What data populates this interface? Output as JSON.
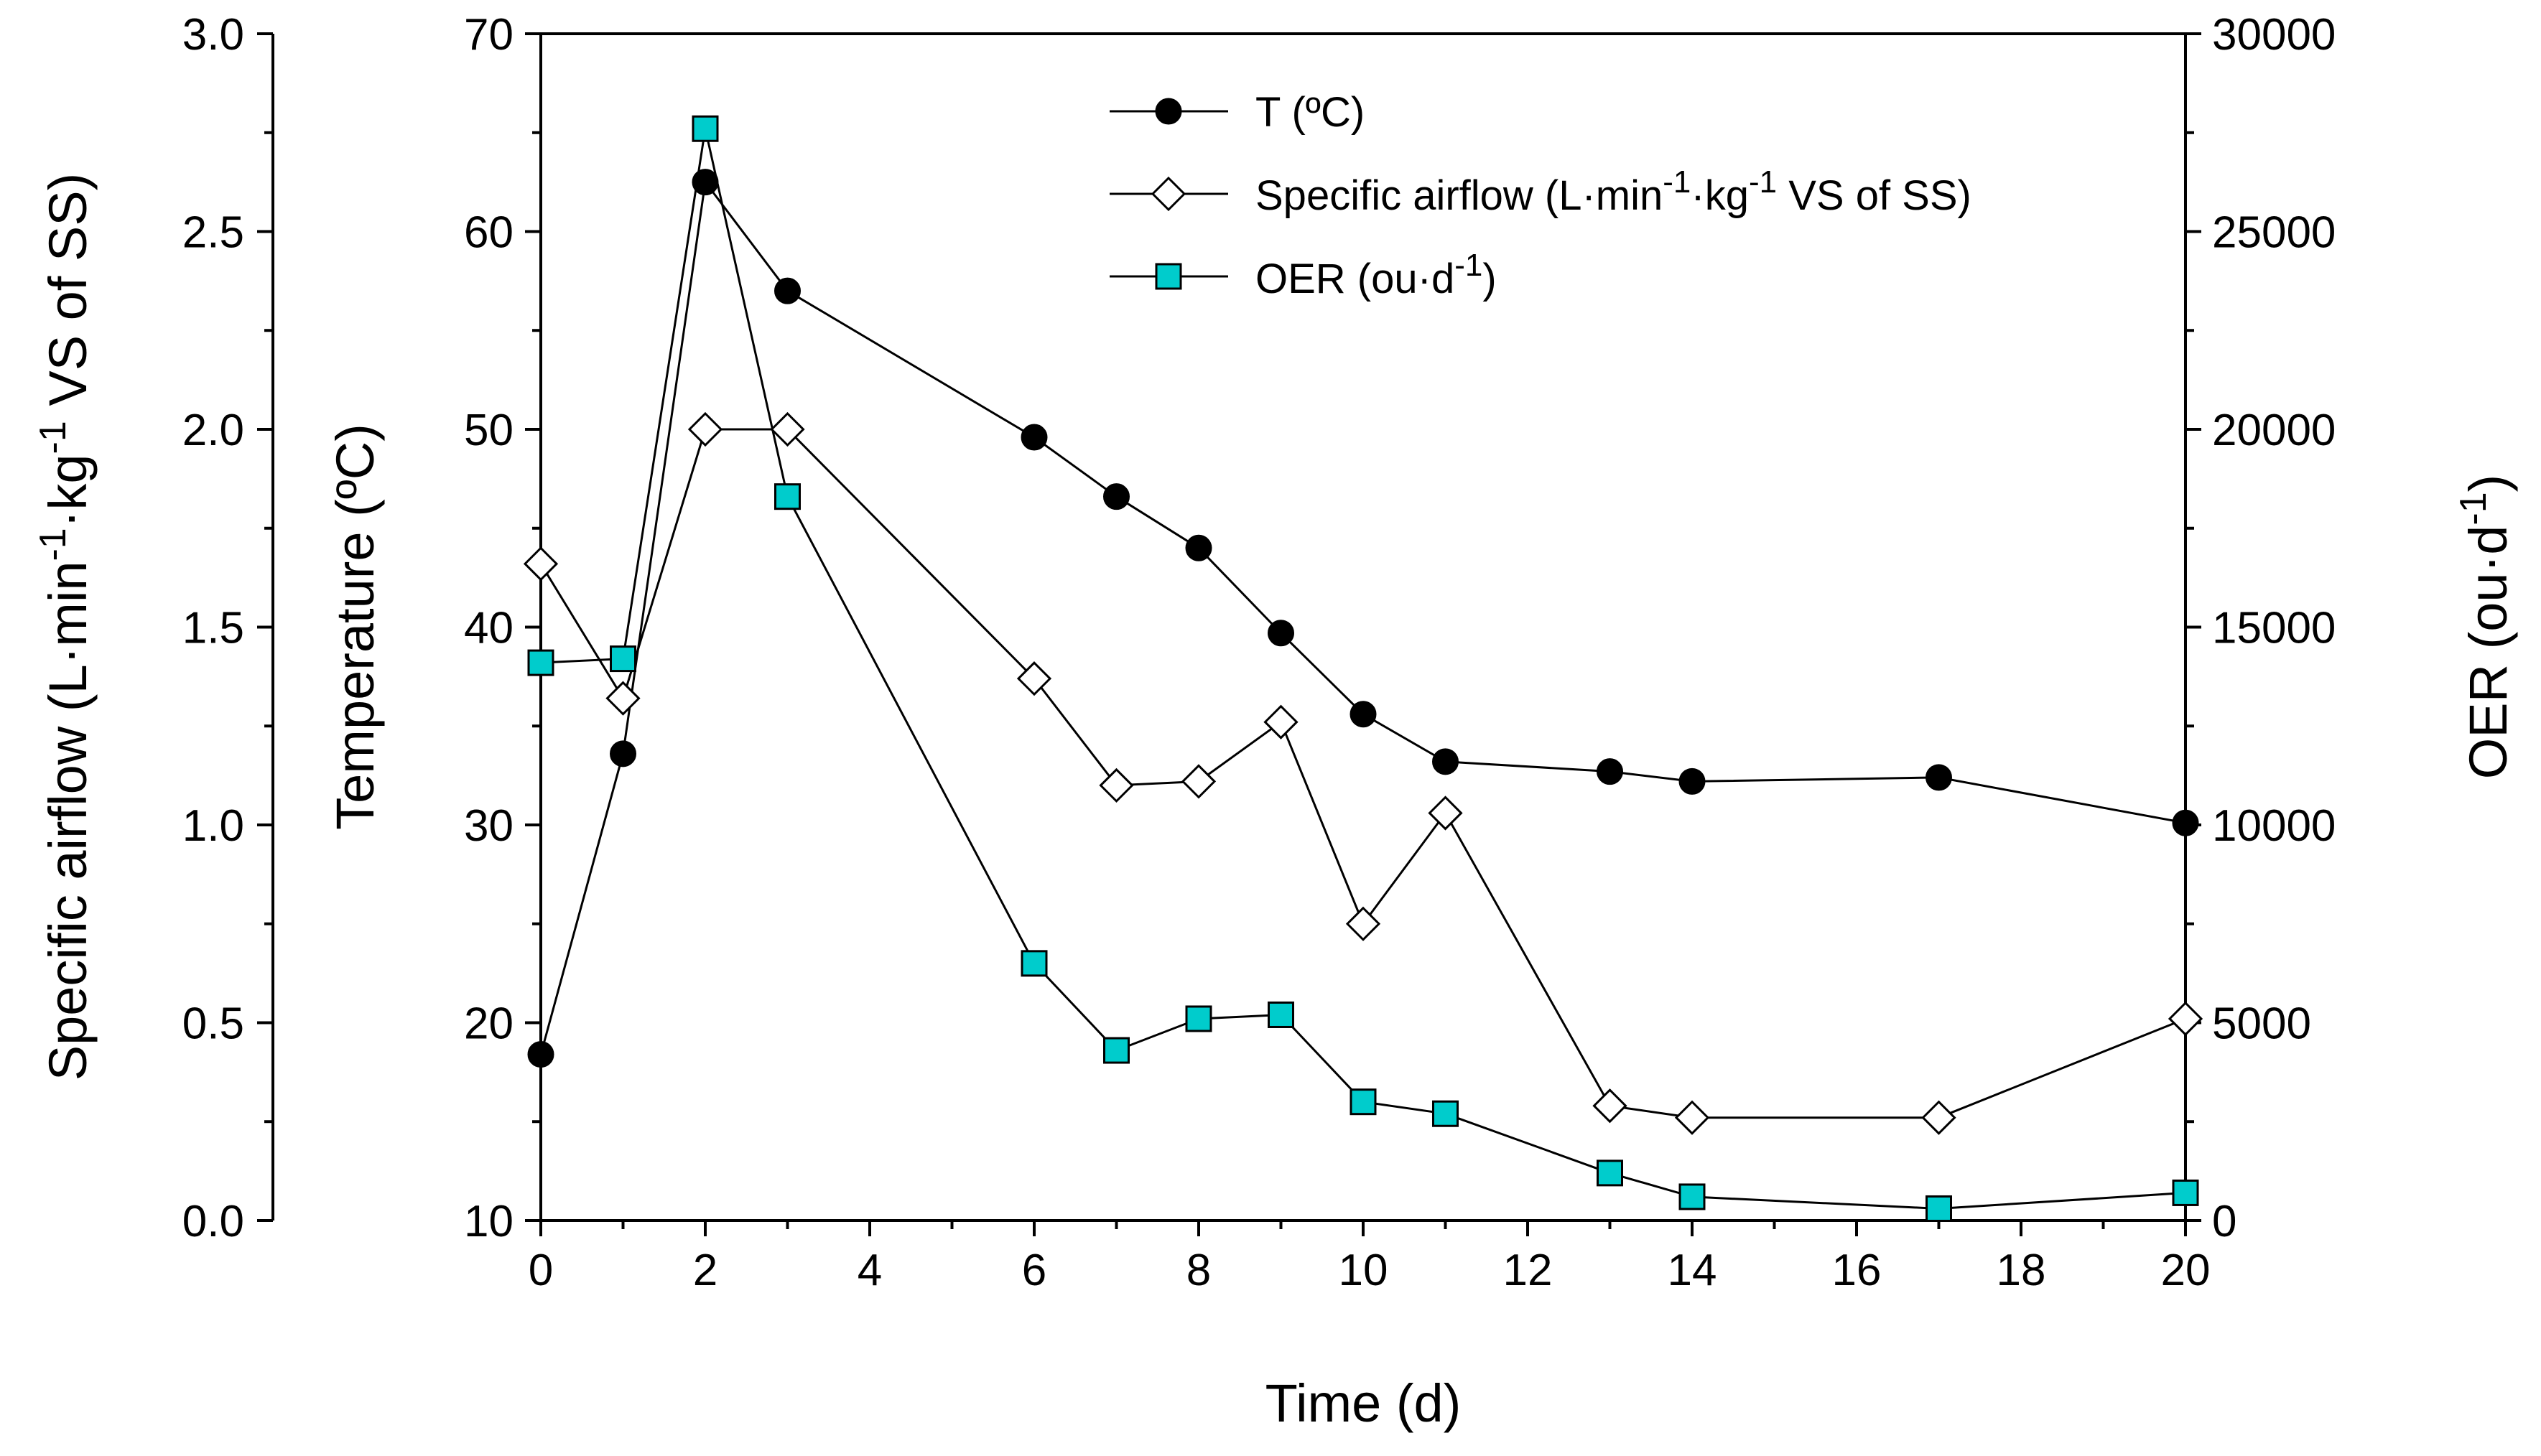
{
  "chart_data": {
    "type": "line",
    "x": [
      0,
      1,
      2,
      3,
      6,
      7,
      8,
      9,
      10,
      11,
      13,
      14,
      17,
      20
    ],
    "xlabel": "Time (d)",
    "xlim": [
      0,
      20
    ],
    "xticks": [
      "0",
      "2",
      "4",
      "6",
      "8",
      "10",
      "12",
      "14",
      "16",
      "18",
      "20"
    ],
    "axes": {
      "temperature": {
        "label": "Temperature (ºC)",
        "lim": [
          10,
          70
        ],
        "ticks": [
          "10",
          "20",
          "30",
          "40",
          "50",
          "60",
          "70"
        ]
      },
      "airflow": {
        "label_main": "Specific airflow (L·min",
        "label_sup1": "-1",
        "label_mid": "·kg",
        "label_sup2": "-1",
        "label_end": " VS of SS)",
        "lim": [
          0,
          3
        ],
        "ticks": [
          "0.0",
          "0.5",
          "1.0",
          "1.5",
          "2.0",
          "2.5",
          "3.0"
        ]
      },
      "oer": {
        "label_main": "OER (ou·d",
        "label_sup": "-1",
        "label_end": ")",
        "lim": [
          0,
          30000
        ],
        "ticks": [
          "0",
          "5000",
          "10000",
          "15000",
          "20000",
          "25000",
          "30000"
        ]
      }
    },
    "series": [
      {
        "name": "T (ºC)",
        "axis": "temperature",
        "marker": "filled-circle",
        "color": "#000000",
        "values": [
          18.4,
          33.6,
          62.5,
          57.0,
          49.6,
          46.6,
          44.0,
          39.7,
          35.6,
          33.2,
          32.7,
          32.2,
          32.4,
          30.1
        ]
      },
      {
        "name": "Specific airflow",
        "axis": "airflow",
        "marker": "open-diamond",
        "color": "#000000",
        "values": [
          1.66,
          1.32,
          2.0,
          2.0,
          1.37,
          1.1,
          1.11,
          1.26,
          0.75,
          1.03,
          0.29,
          0.26,
          0.26,
          0.51
        ]
      },
      {
        "name": "OER",
        "axis": "oer",
        "marker": "cyan-square",
        "color": "#00cccc",
        "values": [
          14100,
          14200,
          27600,
          18300,
          6500,
          4300,
          5100,
          5200,
          3000,
          2700,
          1200,
          600,
          300,
          700
        ]
      }
    ],
    "legend": {
      "placement": "top-center",
      "t_label": "T (ºC)",
      "airflow_main": "Specific airflow (L·min",
      "airflow_sup1": "-1",
      "airflow_mid": "·kg",
      "airflow_sup2": "-1",
      "airflow_end": " VS of SS)",
      "oer_main": "OER (ou·d",
      "oer_sup": "-1",
      "oer_end": ")"
    }
  }
}
